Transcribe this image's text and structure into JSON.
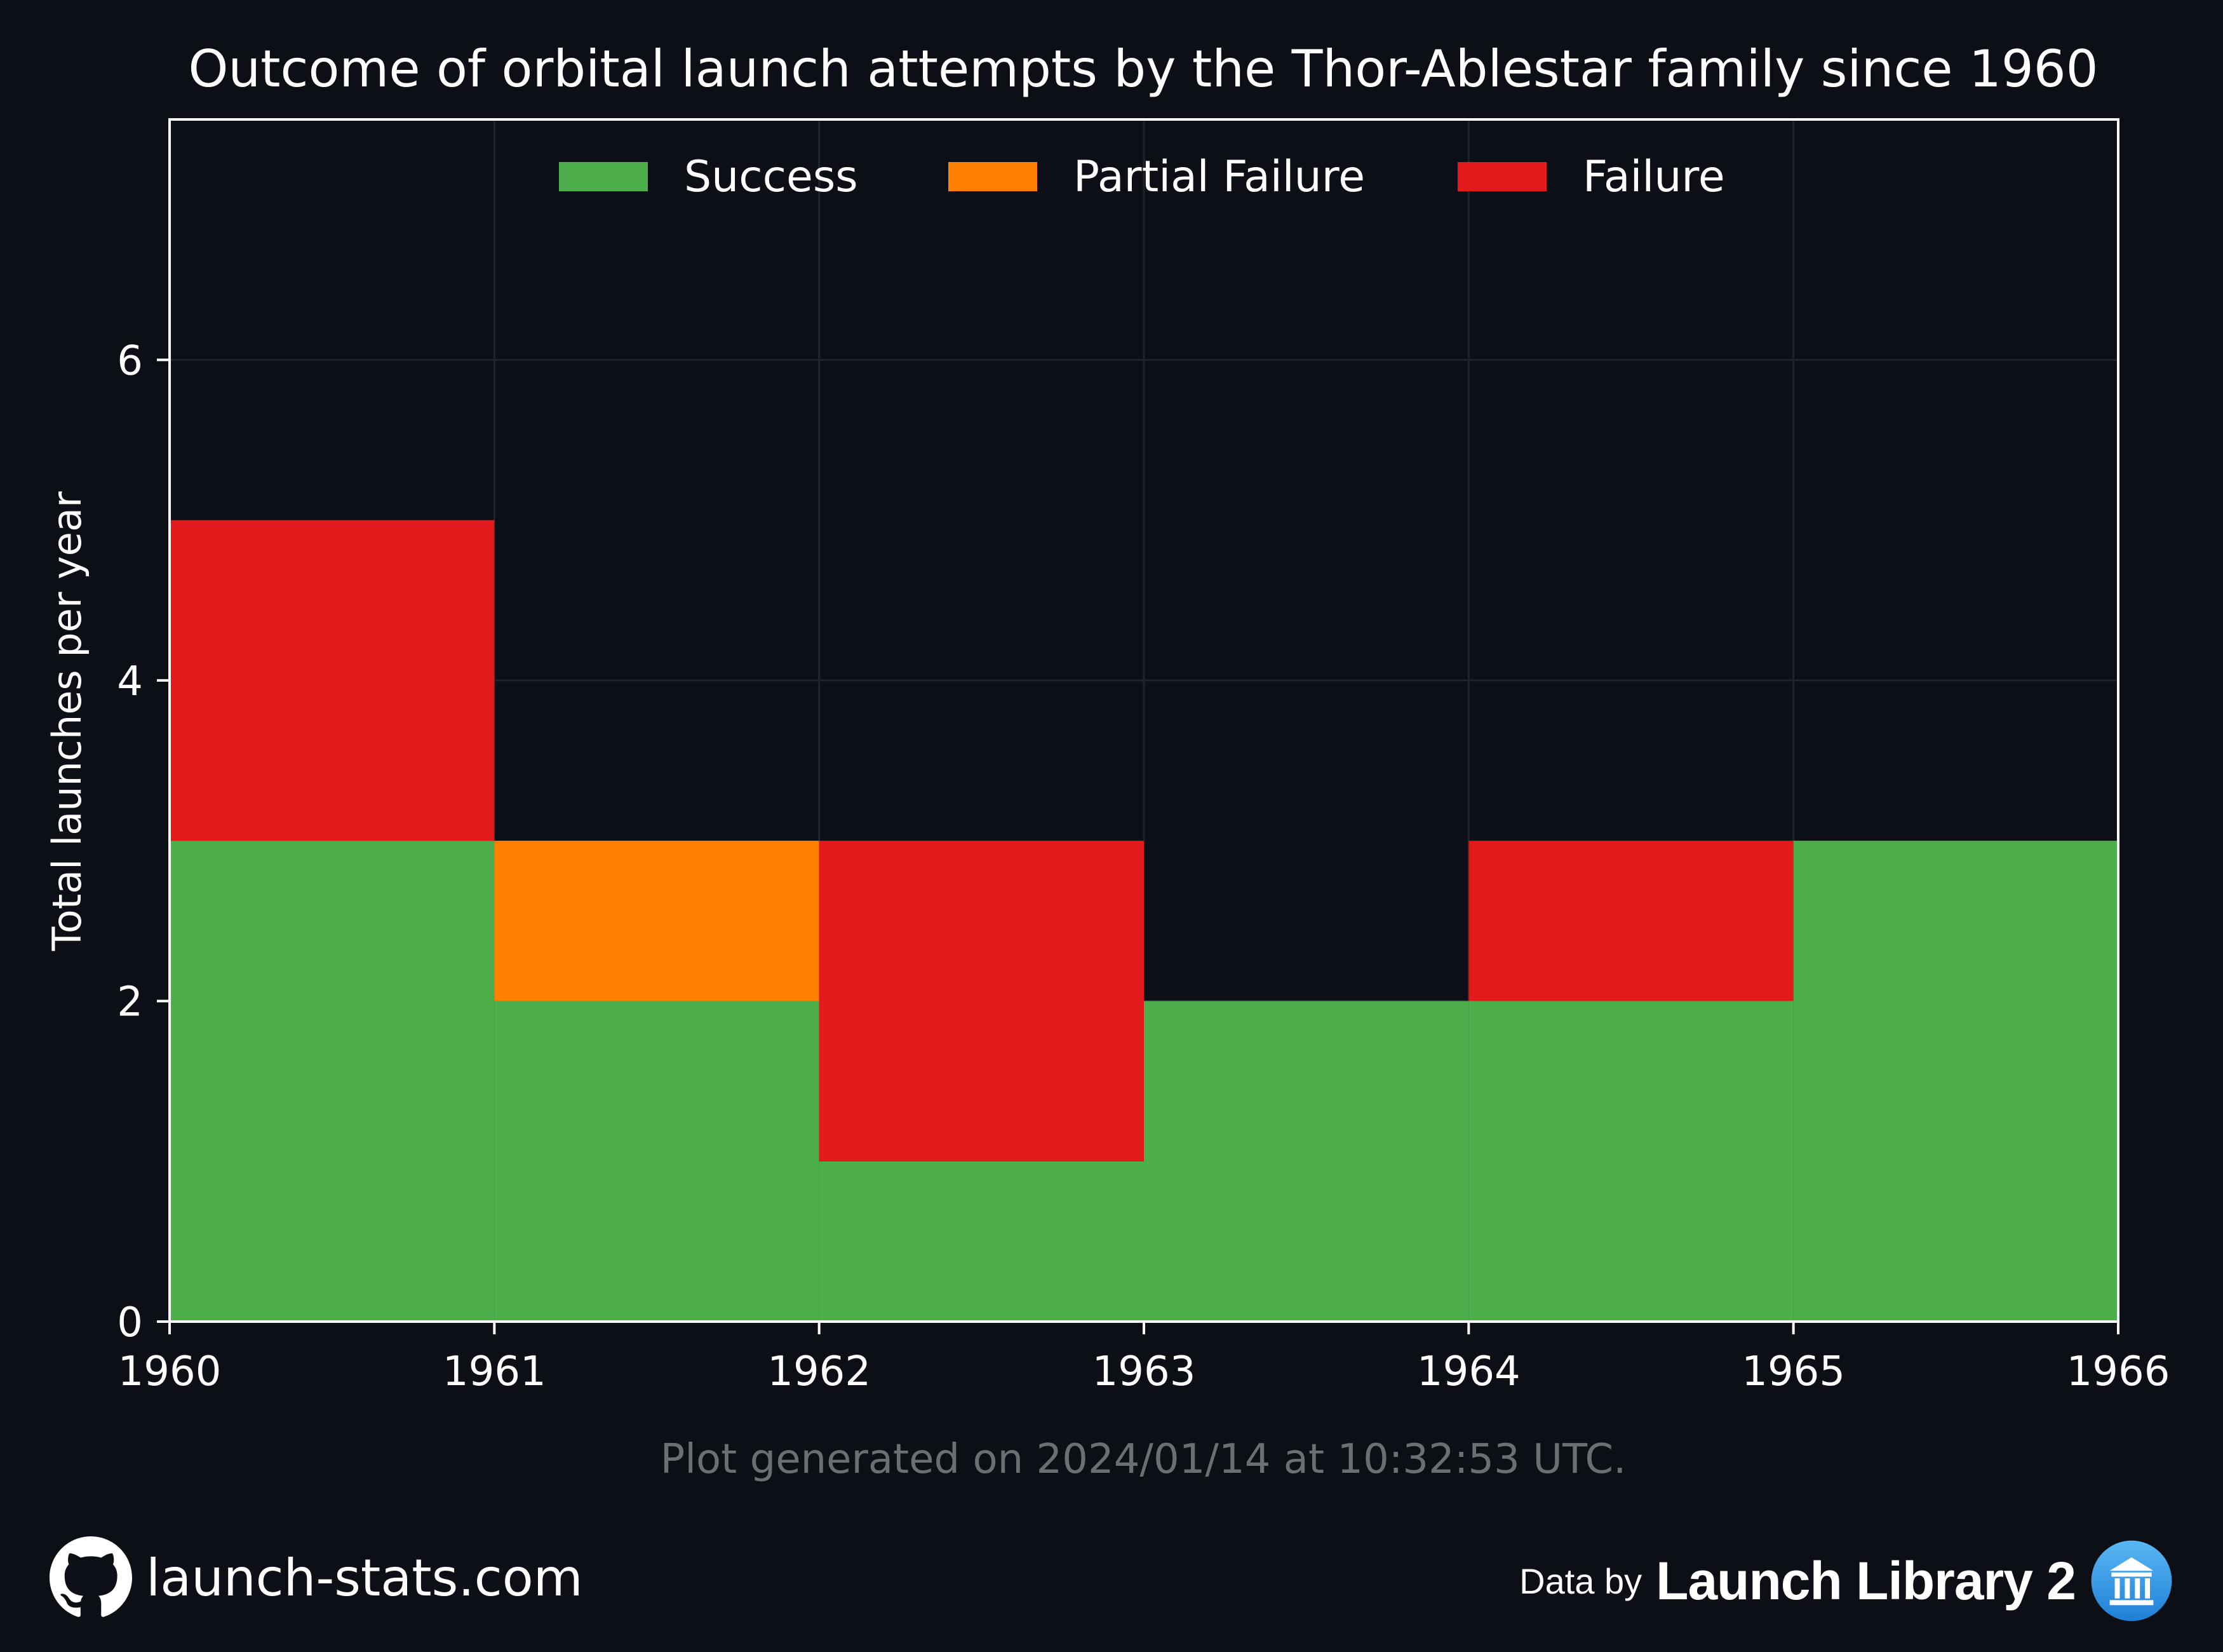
{
  "chart_data": {
    "type": "bar",
    "stacked": true,
    "title": "Outcome of orbital launch attempts by the Thor-Ablestar family since 1960",
    "xlabel": "",
    "ylabel": "Total launches per year",
    "categories": [
      "1960",
      "1961",
      "1962",
      "1963",
      "1964",
      "1965"
    ],
    "x_ticks": [
      "1960",
      "1961",
      "1962",
      "1963",
      "1964",
      "1965",
      "1966"
    ],
    "y_ticks": [
      "0",
      "2",
      "4",
      "6"
    ],
    "xlim": [
      1960,
      1966
    ],
    "ylim": [
      0,
      7.5
    ],
    "grid": true,
    "legend_position": "top-center",
    "series": [
      {
        "name": "Success",
        "color": "#4caf4c",
        "values": [
          3,
          2,
          1,
          2,
          2,
          3
        ]
      },
      {
        "name": "Partial Failure",
        "color": "#ff8000",
        "values": [
          0,
          1,
          0,
          0,
          0,
          0
        ]
      },
      {
        "name": "Failure",
        "color": "#e31a1c",
        "values": [
          2,
          0,
          2,
          0,
          1,
          0
        ]
      }
    ]
  },
  "footer": {
    "generated_note": "Plot generated on 2024/01/14 at 10:32:53 UTC.",
    "site": "launch-stats.com",
    "site_icon": "github-icon",
    "data_by": "Data by",
    "source": "Launch Library 2",
    "source_icon": "launch-library-logo-icon"
  },
  "colors": {
    "background": "#0c0f16",
    "text": "#ffffff",
    "grid": "#1f232b",
    "note": "#6b6e73"
  }
}
